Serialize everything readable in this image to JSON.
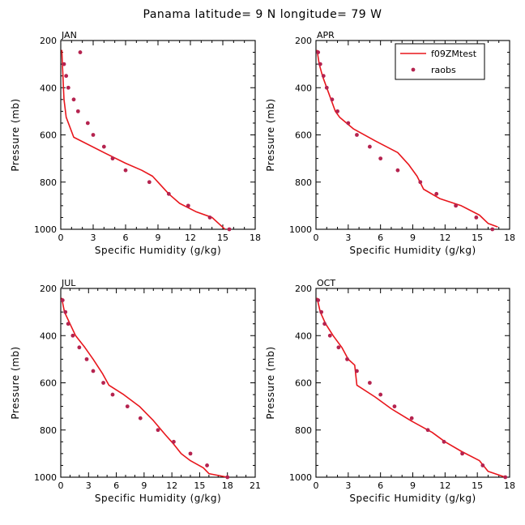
{
  "title": "Panama   latitude= 9 N longitude= 79 W",
  "colors": {
    "model": "#e8161c",
    "obs": "#b5234f"
  },
  "legend": {
    "model": "f09ZMtest",
    "obs": "raobs"
  },
  "chart_data": [
    {
      "type": "line",
      "panel": "JAN",
      "xlabel": "Specific Humidity (g/kg)",
      "ylabel": "Pressure (mb)",
      "xlim": [
        0,
        18
      ],
      "ylim": [
        1000,
        200
      ],
      "xticks": [
        0,
        3,
        6,
        9,
        12,
        15,
        18
      ],
      "yticks": [
        200,
        400,
        600,
        800,
        1000
      ],
      "legend": false,
      "series": [
        {
          "kind": "line",
          "points": [
            [
              0.1,
              240
            ],
            [
              0.15,
              300
            ],
            [
              0.2,
              350
            ],
            [
              0.25,
              400
            ],
            [
              0.3,
              450
            ],
            [
              0.5,
              525
            ],
            [
              1.2,
              610
            ],
            [
              4.0,
              675
            ],
            [
              6.0,
              720
            ],
            [
              7.5,
              750
            ],
            [
              8.5,
              775
            ],
            [
              9.0,
              800
            ],
            [
              10.0,
              850
            ],
            [
              11.0,
              890
            ],
            [
              12.5,
              925
            ],
            [
              14.0,
              950
            ],
            [
              14.6,
              975
            ],
            [
              15.2,
              1000
            ]
          ]
        },
        {
          "kind": "scatter",
          "points": [
            [
              1.8,
              250
            ],
            [
              0.3,
              300
            ],
            [
              0.5,
              350
            ],
            [
              0.7,
              400
            ],
            [
              1.2,
              450
            ],
            [
              1.6,
              500
            ],
            [
              2.5,
              550
            ],
            [
              3.0,
              600
            ],
            [
              4.0,
              650
            ],
            [
              4.8,
              700
            ],
            [
              6.0,
              750
            ],
            [
              8.2,
              800
            ],
            [
              10.0,
              850
            ],
            [
              11.8,
              900
            ],
            [
              13.8,
              950
            ],
            [
              15.6,
              1000
            ]
          ]
        }
      ]
    },
    {
      "type": "line",
      "panel": "APR",
      "xlabel": "Specific Humidity (g/kg)",
      "ylabel": "Pressure (mb)",
      "xlim": [
        0,
        18
      ],
      "ylim": [
        1000,
        200
      ],
      "xticks": [
        0,
        3,
        6,
        9,
        12,
        15,
        18
      ],
      "yticks": [
        200,
        400,
        600,
        800,
        1000
      ],
      "legend": true,
      "series": [
        {
          "kind": "line",
          "points": [
            [
              0.1,
              240
            ],
            [
              0.3,
              300
            ],
            [
              0.6,
              350
            ],
            [
              1.0,
              400
            ],
            [
              1.4,
              450
            ],
            [
              1.8,
              500
            ],
            [
              2.2,
              525
            ],
            [
              3.5,
              575
            ],
            [
              5.5,
              625
            ],
            [
              7.6,
              675
            ],
            [
              8.6,
              725
            ],
            [
              9.4,
              775
            ],
            [
              10.0,
              830
            ],
            [
              11.5,
              870
            ],
            [
              13.5,
              900
            ],
            [
              15.2,
              940
            ],
            [
              16.0,
              975
            ],
            [
              16.9,
              990
            ]
          ]
        },
        {
          "kind": "scatter",
          "points": [
            [
              0.2,
              250
            ],
            [
              0.4,
              300
            ],
            [
              0.7,
              350
            ],
            [
              1.0,
              400
            ],
            [
              1.5,
              450
            ],
            [
              2.0,
              500
            ],
            [
              3.0,
              550
            ],
            [
              3.8,
              600
            ],
            [
              5.0,
              650
            ],
            [
              6.0,
              700
            ],
            [
              7.6,
              750
            ],
            [
              9.7,
              800
            ],
            [
              11.2,
              850
            ],
            [
              13.0,
              900
            ],
            [
              14.9,
              950
            ],
            [
              16.4,
              1000
            ]
          ]
        }
      ]
    },
    {
      "type": "line",
      "panel": "JUL",
      "xlabel": "Specific Humidity (g/kg)",
      "ylabel": "Pressure (mb)",
      "xlim": [
        0,
        21
      ],
      "ylim": [
        1000,
        200
      ],
      "xticks": [
        0,
        3,
        6,
        9,
        12,
        15,
        18,
        21
      ],
      "yticks": [
        200,
        400,
        600,
        800,
        1000
      ],
      "legend": false,
      "series": [
        {
          "kind": "line",
          "points": [
            [
              0.1,
              240
            ],
            [
              0.4,
              300
            ],
            [
              1.0,
              350
            ],
            [
              1.6,
              400
            ],
            [
              2.6,
              450
            ],
            [
              3.5,
              500
            ],
            [
              4.5,
              560
            ],
            [
              5.2,
              610
            ],
            [
              6.8,
              650
            ],
            [
              8.5,
              700
            ],
            [
              10.0,
              760
            ],
            [
              11.3,
              820
            ],
            [
              12.2,
              860
            ],
            [
              13.0,
              900
            ],
            [
              14.0,
              930
            ],
            [
              15.4,
              960
            ],
            [
              16.0,
              985
            ],
            [
              18.0,
              1000
            ]
          ]
        },
        {
          "kind": "scatter",
          "points": [
            [
              0.2,
              250
            ],
            [
              0.5,
              300
            ],
            [
              0.8,
              350
            ],
            [
              1.3,
              400
            ],
            [
              2.0,
              450
            ],
            [
              2.8,
              500
            ],
            [
              3.5,
              550
            ],
            [
              4.6,
              600
            ],
            [
              5.6,
              650
            ],
            [
              7.2,
              700
            ],
            [
              8.6,
              750
            ],
            [
              10.5,
              800
            ],
            [
              12.2,
              850
            ],
            [
              14.0,
              900
            ],
            [
              15.8,
              950
            ],
            [
              18.0,
              1000
            ]
          ]
        }
      ]
    },
    {
      "type": "line",
      "panel": "OCT",
      "xlabel": "Specific Humidity (g/kg)",
      "ylabel": "Pressure (mb)",
      "xlim": [
        0,
        18
      ],
      "ylim": [
        1000,
        200
      ],
      "xticks": [
        0,
        3,
        6,
        9,
        12,
        15,
        18
      ],
      "yticks": [
        200,
        400,
        600,
        800,
        1000
      ],
      "legend": false,
      "series": [
        {
          "kind": "line",
          "points": [
            [
              0.1,
              240
            ],
            [
              0.4,
              300
            ],
            [
              0.9,
              350
            ],
            [
              1.6,
              400
            ],
            [
              2.4,
              450
            ],
            [
              3.0,
              500
            ],
            [
              3.6,
              525
            ],
            [
              3.8,
              610
            ],
            [
              5.5,
              660
            ],
            [
              7.0,
              710
            ],
            [
              8.8,
              760
            ],
            [
              10.8,
              810
            ],
            [
              12.0,
              850
            ],
            [
              13.5,
              890
            ],
            [
              15.2,
              930
            ],
            [
              16.0,
              975
            ],
            [
              17.6,
              1000
            ]
          ]
        },
        {
          "kind": "scatter",
          "points": [
            [
              0.2,
              250
            ],
            [
              0.5,
              300
            ],
            [
              0.8,
              350
            ],
            [
              1.3,
              400
            ],
            [
              2.1,
              450
            ],
            [
              2.9,
              500
            ],
            [
              3.8,
              550
            ],
            [
              5.0,
              600
            ],
            [
              6.0,
              650
            ],
            [
              7.3,
              700
            ],
            [
              8.9,
              750
            ],
            [
              10.4,
              800
            ],
            [
              11.9,
              850
            ],
            [
              13.6,
              900
            ],
            [
              15.5,
              950
            ],
            [
              17.6,
              1000
            ]
          ]
        }
      ]
    }
  ]
}
